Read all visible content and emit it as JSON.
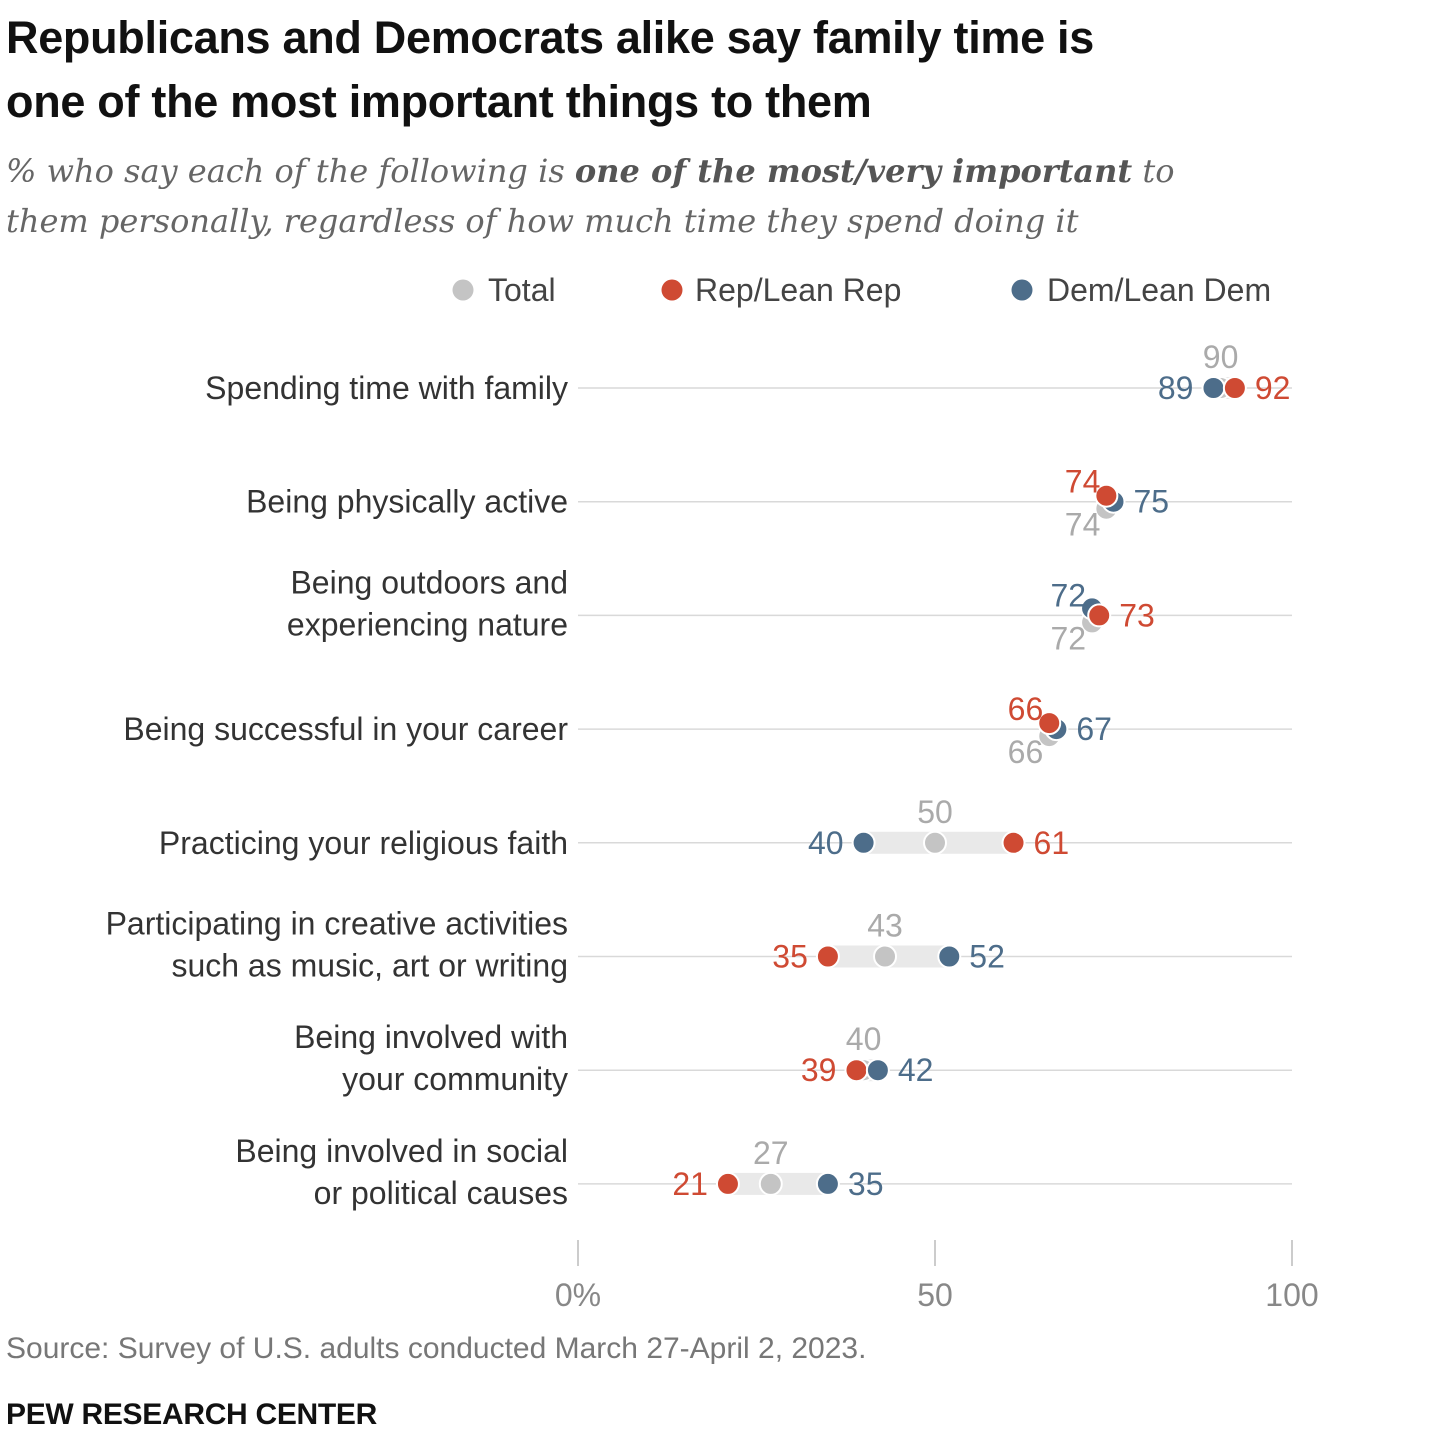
{
  "chart_data": {
    "type": "dot",
    "title_line1": "Republicans and Democrats alike say family time is",
    "title_line2": "one of the most important things to them",
    "subtitle": {
      "prefix": "% who say each of the following is ",
      "emphasis": "one of the most/very important",
      "suffix_line1": " to",
      "line2": "them personally, regardless of how much time they spend doing it"
    },
    "series": [
      {
        "key": "total",
        "name": "Total",
        "color": "#c4c4c4",
        "label_color": "#aaaaaa"
      },
      {
        "key": "rep",
        "name": "Rep/Lean Rep",
        "color": "#cf4a33",
        "label_color": "#cf4a33"
      },
      {
        "key": "dem",
        "name": "Dem/Lean Dem",
        "color": "#4d6d8a",
        "label_color": "#4d6d8a"
      }
    ],
    "categories": [
      {
        "lines": [
          "Spending time with family"
        ],
        "total": 90,
        "rep": 92,
        "dem": 89
      },
      {
        "lines": [
          "Being physically active"
        ],
        "total": 74,
        "rep": 74,
        "dem": 75
      },
      {
        "lines": [
          "Being outdoors and",
          "experiencing nature"
        ],
        "total": 72,
        "rep": 73,
        "dem": 72
      },
      {
        "lines": [
          "Being successful in your career"
        ],
        "total": 66,
        "rep": 66,
        "dem": 67
      },
      {
        "lines": [
          "Practicing your religious faith"
        ],
        "total": 50,
        "rep": 61,
        "dem": 40
      },
      {
        "lines": [
          "Participating in creative activities",
          "such as music, art or writing"
        ],
        "total": 43,
        "rep": 35,
        "dem": 52
      },
      {
        "lines": [
          "Being involved with",
          "your community"
        ],
        "total": 40,
        "rep": 39,
        "dem": 42
      },
      {
        "lines": [
          "Being involved in social",
          "or political causes"
        ],
        "total": 27,
        "rep": 21,
        "dem": 35
      }
    ],
    "xlim": [
      0,
      100
    ],
    "x_ticks": [
      {
        "value": 0,
        "label": "0%"
      },
      {
        "value": 50,
        "label": "50"
      },
      {
        "value": 100,
        "label": "100"
      }
    ],
    "legend_position": "top",
    "grid": "horizontal row lines"
  },
  "footer": {
    "source": "Source: Survey of U.S. adults conducted March 27-April 2, 2023.",
    "brand": "PEW RESEARCH CENTER"
  }
}
